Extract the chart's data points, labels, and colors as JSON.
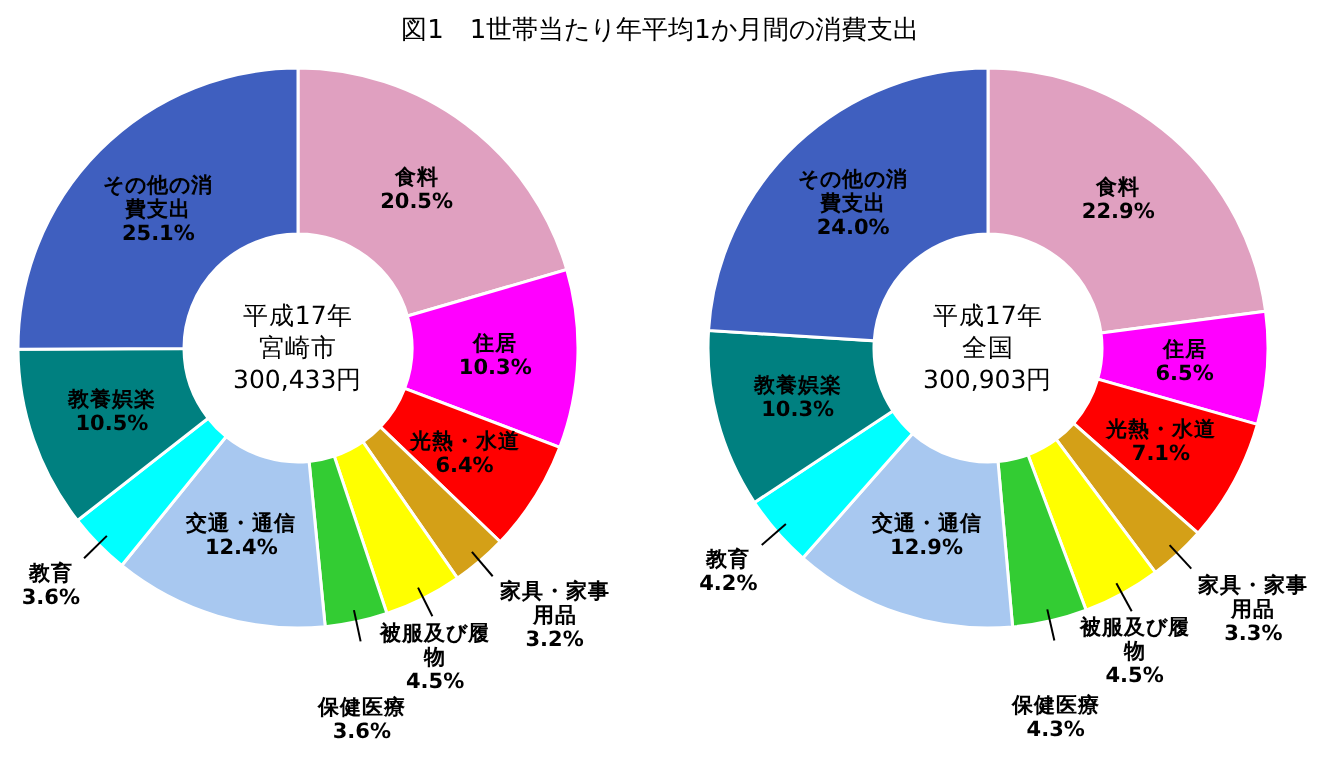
{
  "chart_data": [
    {
      "type": "donut",
      "title": "図1　1世帯当たり年平均1か月間の消費支出",
      "annotations": [
        "平成17年",
        "宮崎市",
        "300,433円"
      ],
      "categories": [
        "食料",
        "住居",
        "光熱・水道",
        "家具・家事用品",
        "被服及び履物",
        "保健医療",
        "交通・通信",
        "教育",
        "教養娯楽",
        "その他の消費支出"
      ],
      "values": [
        20.5,
        10.3,
        6.4,
        3.2,
        4.5,
        3.6,
        12.4,
        3.6,
        10.5,
        25.1
      ],
      "value_labels": [
        "20.5%",
        "10.3%",
        "6.4%",
        "3.2%",
        "4.5%",
        "3.6%",
        "12.4%",
        "3.6%",
        "10.5%",
        "25.1%"
      ],
      "colors": [
        "#e0a0c0",
        "#ff00ff",
        "#ff0000",
        "#d4a017",
        "#ffff00",
        "#33cc33",
        "#a8c8f0",
        "#00ffff",
        "#008080",
        "#3f5fbf"
      ]
    },
    {
      "type": "donut",
      "annotations": [
        "平成17年",
        "全国",
        "300,903円"
      ],
      "categories": [
        "食料",
        "住居",
        "光熱・水道",
        "家具・家事用品",
        "被服及び履物",
        "保健医療",
        "交通・通信",
        "教育",
        "教養娯楽",
        "その他の消費支出"
      ],
      "values": [
        22.9,
        6.5,
        7.1,
        3.3,
        4.5,
        4.3,
        12.9,
        4.2,
        10.3,
        24.0
      ],
      "value_labels": [
        "22.9%",
        "6.5%",
        "7.1%",
        "3.3%",
        "4.5%",
        "4.3%",
        "12.9%",
        "4.2%",
        "10.3%",
        "24.0%"
      ],
      "colors": [
        "#e0a0c0",
        "#ff00ff",
        "#ff0000",
        "#d4a017",
        "#ffff00",
        "#33cc33",
        "#a8c8f0",
        "#00ffff",
        "#008080",
        "#3f5fbf"
      ]
    }
  ]
}
